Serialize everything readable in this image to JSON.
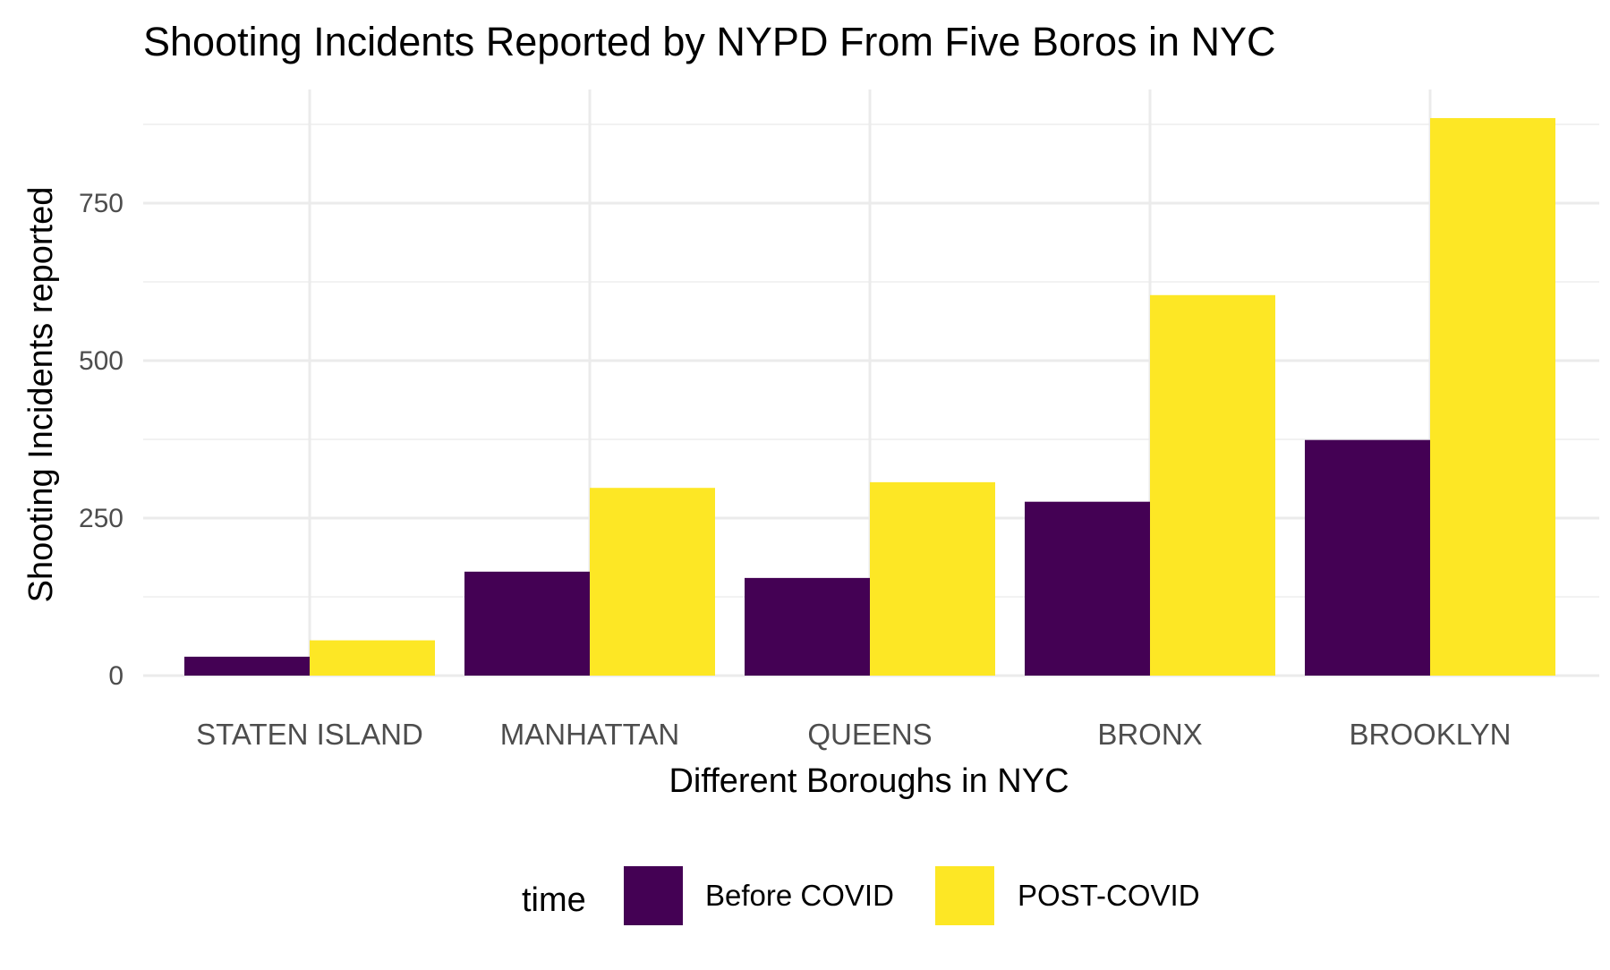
{
  "chart_data": {
    "type": "bar",
    "title": "Shooting Incidents Reported by NYPD From Five Boros in NYC",
    "xlabel": "Different Boroughs in NYC",
    "ylabel": "Shooting Incidents reported",
    "categories": [
      "STATEN ISLAND",
      "MANHATTAN",
      "QUEENS",
      "BRONX",
      "BROOKLYN"
    ],
    "series": [
      {
        "name": "Before COVID",
        "color": "#440154",
        "values": [
          30,
          165,
          155,
          276,
          374
        ]
      },
      {
        "name": "POST-COVID",
        "color": "#FDE725",
        "values": [
          56,
          298,
          307,
          604,
          885
        ]
      }
    ],
    "ylim": [
      0,
      930
    ],
    "yticks": [
      0,
      250,
      500,
      750
    ],
    "yticks_labels": [
      "0",
      "250",
      "500",
      "750"
    ],
    "grid": true,
    "legend": {
      "title": "time",
      "position": "bottom",
      "entries": [
        "Before COVID",
        "POST-COVID"
      ]
    },
    "colors": {
      "grid_major": "#EBEBEB",
      "grid_minor": "#F2F2F2",
      "tick_label": "#4D4D4D",
      "text": "#000000"
    }
  }
}
